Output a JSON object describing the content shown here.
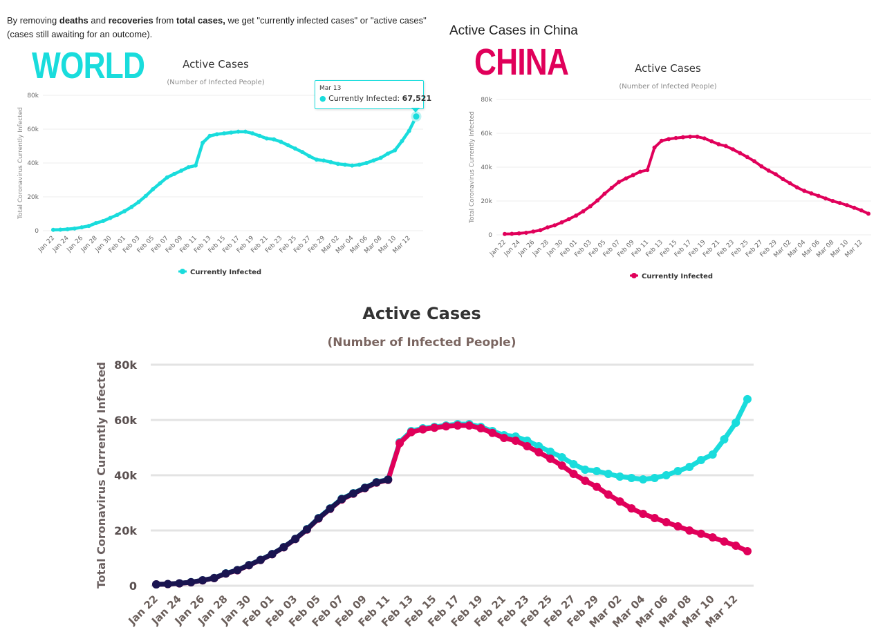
{
  "intro": {
    "part1": "By removing ",
    "bold1": "deaths",
    "part2": " and ",
    "bold2": "recoveries",
    "part3": " from ",
    "bold3": "total cases,",
    "part4": " we get \"currently infected cases\" or \"active cases\" (cases still awaiting for an outcome)."
  },
  "china_heading": "Active Cases in China",
  "world_label": "WORLD",
  "china_label": "CHINA",
  "tooltip": {
    "date": "Mar 13",
    "series": "Currently Infected:",
    "value": "67,521"
  },
  "colors": {
    "world": "#19dcdc",
    "china": "#e0005a",
    "overlap": "#1a1450",
    "grid": "#e6e6e6",
    "axis_text": "#666666"
  },
  "chart_data": [
    {
      "type": "line",
      "title": "Active Cases",
      "subtitle": "(Number of Infected People)",
      "ylabel": "Total Coronavirus Currently Infected",
      "xlabel": "",
      "ylim": [
        0,
        80000
      ],
      "yticks": [
        "0",
        "20k",
        "40k",
        "60k",
        "80k"
      ],
      "legend": "bottom-center",
      "categories": [
        "Jan 22",
        "Jan 23",
        "Jan 24",
        "Jan 25",
        "Jan 26",
        "Jan 27",
        "Jan 28",
        "Jan 29",
        "Jan 30",
        "Jan 31",
        "Feb 01",
        "Feb 02",
        "Feb 03",
        "Feb 04",
        "Feb 05",
        "Feb 06",
        "Feb 07",
        "Feb 08",
        "Feb 09",
        "Feb 10",
        "Feb 11",
        "Feb 12",
        "Feb 13",
        "Feb 14",
        "Feb 15",
        "Feb 16",
        "Feb 17",
        "Feb 18",
        "Feb 19",
        "Feb 20",
        "Feb 21",
        "Feb 22",
        "Feb 23",
        "Feb 24",
        "Feb 25",
        "Feb 26",
        "Feb 27",
        "Feb 28",
        "Feb 29",
        "Mar 01",
        "Mar 02",
        "Mar 03",
        "Mar 04",
        "Mar 05",
        "Mar 06",
        "Mar 07",
        "Mar 08",
        "Mar 09",
        "Mar 10",
        "Mar 11",
        "Mar 12",
        "Mar 13"
      ],
      "series": [
        {
          "name": "Currently Infected",
          "color": "#19dcdc",
          "values": [
            510,
            620,
            880,
            1300,
            2000,
            2800,
            4500,
            5700,
            7500,
            9400,
            11500,
            14000,
            17000,
            20500,
            24500,
            28000,
            31500,
            33500,
            35500,
            37500,
            38500,
            52000,
            56000,
            57000,
            57500,
            58000,
            58500,
            58500,
            57500,
            56000,
            54500,
            54000,
            52500,
            50500,
            48500,
            46500,
            44000,
            42000,
            41500,
            40500,
            39500,
            39000,
            38500,
            39000,
            40000,
            41500,
            43000,
            45500,
            47500,
            53000,
            59000,
            67521
          ]
        }
      ]
    },
    {
      "type": "line",
      "title": "Active Cases",
      "subtitle": "(Number of Infected People)",
      "ylabel": "Total Coronavirus Currently Infected",
      "xlabel": "",
      "ylim": [
        0,
        80000
      ],
      "yticks": [
        "0",
        "20k",
        "40k",
        "60k",
        "80k"
      ],
      "legend": "bottom-center",
      "categories": [
        "Jan 22",
        "Jan 23",
        "Jan 24",
        "Jan 25",
        "Jan 26",
        "Jan 27",
        "Jan 28",
        "Jan 29",
        "Jan 30",
        "Jan 31",
        "Feb 01",
        "Feb 02",
        "Feb 03",
        "Feb 04",
        "Feb 05",
        "Feb 06",
        "Feb 07",
        "Feb 08",
        "Feb 09",
        "Feb 10",
        "Feb 11",
        "Feb 12",
        "Feb 13",
        "Feb 14",
        "Feb 15",
        "Feb 16",
        "Feb 17",
        "Feb 18",
        "Feb 19",
        "Feb 20",
        "Feb 21",
        "Feb 22",
        "Feb 23",
        "Feb 24",
        "Feb 25",
        "Feb 26",
        "Feb 27",
        "Feb 28",
        "Feb 29",
        "Mar 01",
        "Mar 02",
        "Mar 03",
        "Mar 04",
        "Mar 05",
        "Mar 06",
        "Mar 07",
        "Mar 08",
        "Mar 09",
        "Mar 10",
        "Mar 11",
        "Mar 12",
        "Mar 13"
      ],
      "series": [
        {
          "name": "Currently Infected",
          "color": "#e0005a",
          "values": [
            500,
            600,
            850,
            1250,
            1950,
            2750,
            4400,
            5600,
            7400,
            9300,
            11400,
            13900,
            16900,
            20300,
            24300,
            27800,
            31200,
            33300,
            35300,
            37300,
            38300,
            51600,
            55600,
            56600,
            57200,
            57700,
            58000,
            58000,
            57000,
            55300,
            53500,
            52500,
            50500,
            48300,
            46000,
            43500,
            40500,
            38000,
            35800,
            33000,
            30500,
            28000,
            26000,
            24500,
            23000,
            21500,
            20000,
            18800,
            17500,
            16000,
            14500,
            12500
          ]
        }
      ]
    },
    {
      "type": "line",
      "title": "Active Cases",
      "subtitle": "(Number of Infected People)",
      "ylabel": "Total Coronavirus Currently Infected",
      "xlabel": "",
      "ylim": [
        0,
        80000
      ],
      "yticks": [
        "0",
        "20k",
        "40k",
        "60k",
        "80k"
      ],
      "legend": "none",
      "categories": [
        "Jan 22",
        "Jan 23",
        "Jan 24",
        "Jan 25",
        "Jan 26",
        "Jan 27",
        "Jan 28",
        "Jan 29",
        "Jan 30",
        "Jan 31",
        "Feb 01",
        "Feb 02",
        "Feb 03",
        "Feb 04",
        "Feb 05",
        "Feb 06",
        "Feb 07",
        "Feb 08",
        "Feb 09",
        "Feb 10",
        "Feb 11",
        "Feb 12",
        "Feb 13",
        "Feb 14",
        "Feb 15",
        "Feb 16",
        "Feb 17",
        "Feb 18",
        "Feb 19",
        "Feb 20",
        "Feb 21",
        "Feb 22",
        "Feb 23",
        "Feb 24",
        "Feb 25",
        "Feb 26",
        "Feb 27",
        "Feb 28",
        "Feb 29",
        "Mar 01",
        "Mar 02",
        "Mar 03",
        "Mar 04",
        "Mar 05",
        "Mar 06",
        "Mar 07",
        "Mar 08",
        "Mar 09",
        "Mar 10",
        "Mar 11",
        "Mar 12",
        "Mar 13"
      ],
      "series": [
        {
          "name": "World",
          "color": "#19dcdc",
          "values": [
            510,
            620,
            880,
            1300,
            2000,
            2800,
            4500,
            5700,
            7500,
            9400,
            11500,
            14000,
            17000,
            20500,
            24500,
            28000,
            31500,
            33500,
            35500,
            37500,
            38500,
            52000,
            56000,
            57000,
            57500,
            58000,
            58500,
            58500,
            57500,
            56000,
            54500,
            54000,
            52500,
            50500,
            48500,
            46500,
            44000,
            42000,
            41500,
            40500,
            39500,
            39000,
            38500,
            39000,
            40000,
            41500,
            43000,
            45500,
            47500,
            53000,
            59000,
            67521
          ]
        },
        {
          "name": "China",
          "color": "#e0005a",
          "values": [
            500,
            600,
            850,
            1250,
            1950,
            2750,
            4400,
            5600,
            7400,
            9300,
            11400,
            13900,
            16900,
            20300,
            24300,
            27800,
            31200,
            33300,
            35300,
            37300,
            38300,
            51600,
            55600,
            56600,
            57200,
            57700,
            58000,
            58000,
            57000,
            55300,
            53500,
            52500,
            50500,
            48300,
            46000,
            43500,
            40500,
            38000,
            35800,
            33000,
            30500,
            28000,
            26000,
            24500,
            23000,
            21500,
            20000,
            18800,
            17500,
            16000,
            14500,
            12500
          ]
        }
      ]
    }
  ]
}
